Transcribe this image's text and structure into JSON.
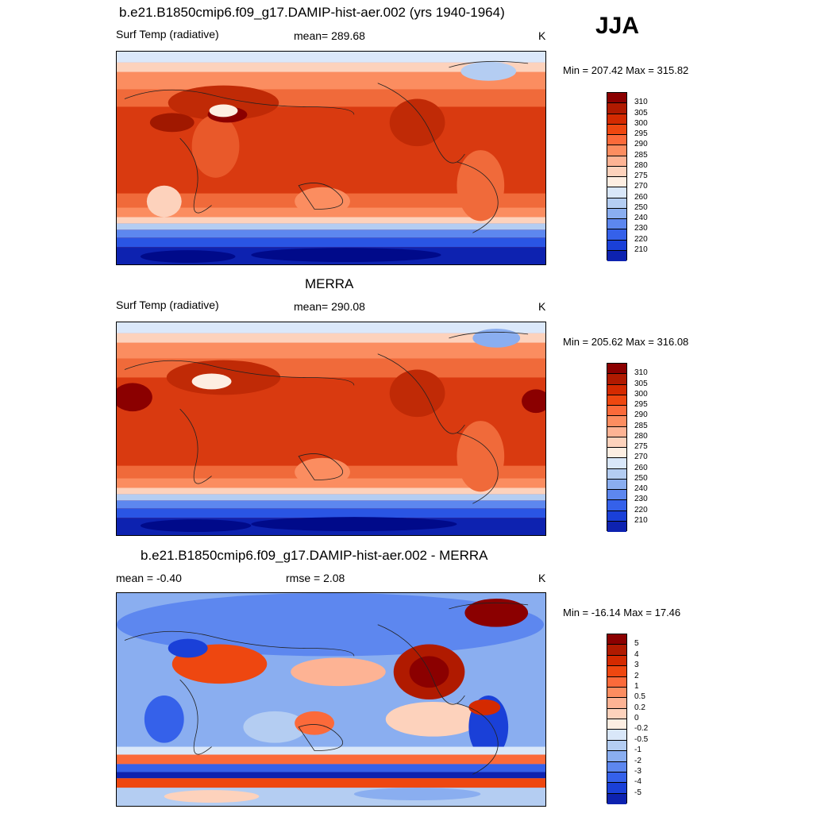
{
  "season": "JJA",
  "panels": [
    {
      "title": "b.e21.B1850cmip6.f09_g17.DAMIP-hist-aer.002 (yrs 1940-1964)",
      "left": "Surf Temp (radiative)",
      "center": "mean= 289.68",
      "units": "K",
      "minmax": "Min = 207.42 Max = 315.82",
      "scale": "abs"
    },
    {
      "title": "MERRA",
      "left": "Surf Temp (radiative)",
      "center": "mean= 290.08",
      "units": "K",
      "minmax": "Min = 205.62 Max = 316.08",
      "scale": "abs"
    },
    {
      "title": "b.e21.B1850cmip6.f09_g17.DAMIP-hist-aer.002 - MERRA",
      "left": "mean =  -0.40",
      "center": "rmse =   2.08",
      "units": "K",
      "minmax": "Min = -16.14 Max =  17.46",
      "scale": "diff"
    }
  ],
  "colorbars": {
    "abs": {
      "labels": [
        "310",
        "305",
        "300",
        "295",
        "290",
        "285",
        "280",
        "275",
        "270",
        "260",
        "250",
        "240",
        "230",
        "220",
        "210"
      ],
      "colors": [
        "#8b0000",
        "#b01a00",
        "#d42a00",
        "#ee4710",
        "#fb6a3a",
        "#fc8d60",
        "#fdb394",
        "#fdd2bc",
        "#fdeee2",
        "#d9e7f9",
        "#b4cdf2",
        "#8aaef0",
        "#5d87ef",
        "#3561ea",
        "#1a40d8",
        "#0d22b0"
      ]
    },
    "diff": {
      "labels": [
        "5",
        "4",
        "3",
        "2",
        "1",
        "0.5",
        "0.2",
        "0",
        "-0.2",
        "-0.5",
        "-1",
        "-2",
        "-3",
        "-4",
        "-5"
      ],
      "colors": [
        "#8b0000",
        "#b01a00",
        "#d42a00",
        "#ee4710",
        "#fb6a3a",
        "#fc8d60",
        "#fdb394",
        "#fdd2bc",
        "#fdeee2",
        "#d9e7f9",
        "#b4cdf2",
        "#8aaef0",
        "#5d87ef",
        "#3561ea",
        "#1a40d8",
        "#0d22b0"
      ]
    }
  }
}
